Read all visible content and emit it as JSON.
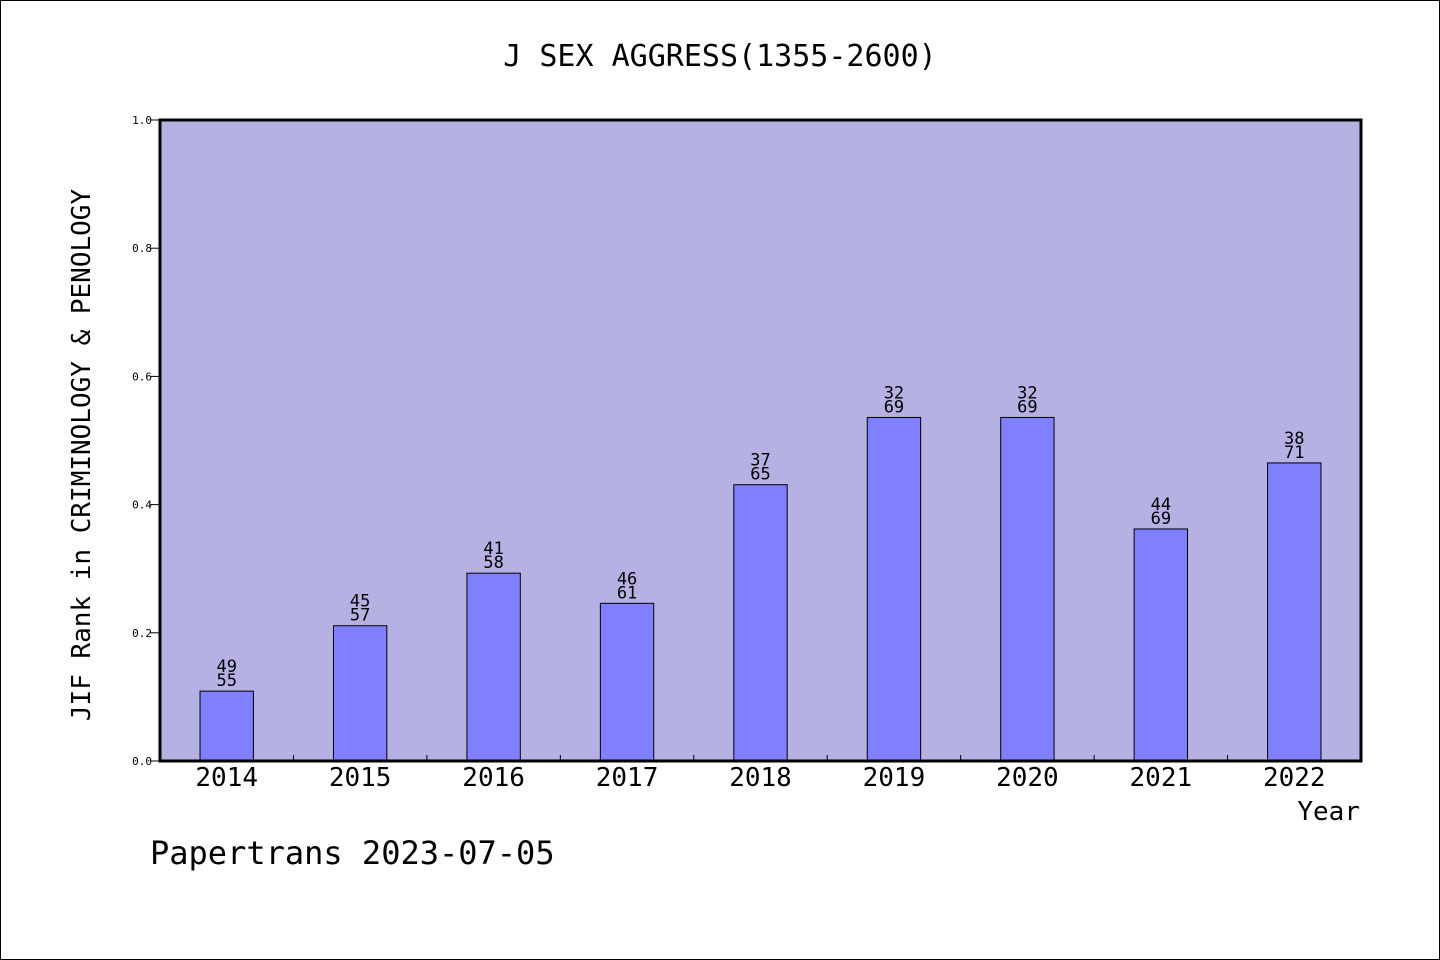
{
  "chart_data": {
    "type": "bar",
    "title": "J SEX AGGRESS(1355-2600)",
    "xlabel": "Year",
    "ylabel": "JIF Rank in CRIMINOLOGY & PENOLOGY",
    "ylim": [
      0,
      1.0
    ],
    "yticks": [
      "0.0",
      "0.2",
      "0.4",
      "0.6",
      "0.8",
      "1.0"
    ],
    "categories": [
      "2014",
      "2015",
      "2016",
      "2017",
      "2018",
      "2019",
      "2020",
      "2021",
      "2022"
    ],
    "values": [
      0.109,
      0.211,
      0.293,
      0.246,
      0.431,
      0.536,
      0.536,
      0.362,
      0.465
    ],
    "labels": [
      [
        "49",
        "55"
      ],
      [
        "45",
        "57"
      ],
      [
        "41",
        "58"
      ],
      [
        "46",
        "61"
      ],
      [
        "37",
        "65"
      ],
      [
        "32",
        "69"
      ],
      [
        "32",
        "69"
      ],
      [
        "44",
        "69"
      ],
      [
        "38",
        "71"
      ]
    ],
    "grid": false,
    "colors": {
      "plot_bg": "#b6b1e3",
      "bar": "#8080ff",
      "axis": "#000000"
    }
  },
  "footer": "Papertrans 2023-07-05"
}
